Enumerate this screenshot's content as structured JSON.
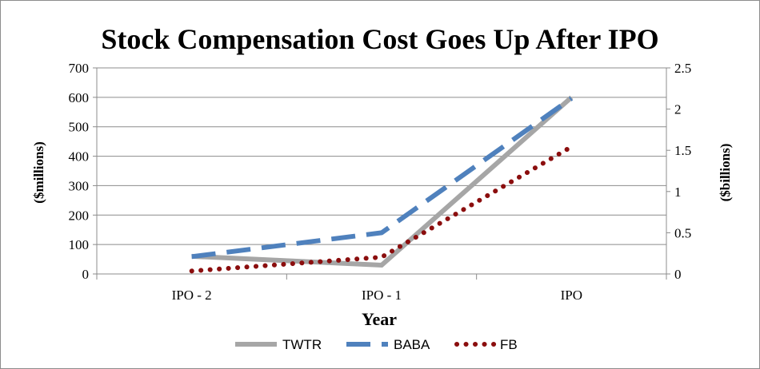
{
  "chart_data": {
    "type": "line",
    "title": "Stock Compensation Cost Goes Up After IPO",
    "xlabel": "Year",
    "ylabel": "($millions)",
    "y2label": "($billions)",
    "categories": [
      "IPO - 2",
      "IPO - 1",
      "IPO"
    ],
    "ylim": [
      0,
      700
    ],
    "yticks": [
      "0",
      "100",
      "200",
      "300",
      "400",
      "500",
      "600",
      "700"
    ],
    "y2lim": [
      0,
      2.5
    ],
    "y2ticks": [
      "0",
      "0.5",
      "1",
      "1.5",
      "2",
      "2.5"
    ],
    "grid": true,
    "legend_position": "bottom",
    "series": [
      {
        "name": "TWTR",
        "axis": "left",
        "values": [
          60,
          30,
          600
        ],
        "color": "#a6a6a6",
        "style": "solid"
      },
      {
        "name": "BABA",
        "axis": "right",
        "values": [
          0.21,
          0.5,
          2.13
        ],
        "color": "#4f81bd",
        "style": "dashed"
      },
      {
        "name": "FB",
        "axis": "left",
        "values": [
          10,
          57,
          432
        ],
        "color": "#8b0e0e",
        "style": "dotted"
      }
    ]
  }
}
